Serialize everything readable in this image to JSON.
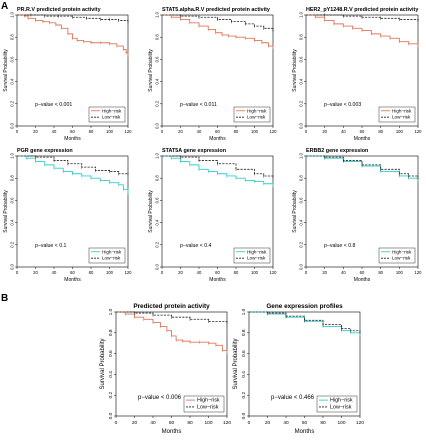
{
  "panel_labels": {
    "a": "A",
    "b": "B"
  },
  "chart_data": [
    {
      "type": "line",
      "panel": "A",
      "title": "PR.R.V   predicted protein activity",
      "xlabel": "Months",
      "ylabel": "Survival Probability",
      "xlim": [
        0,
        120
      ],
      "ylim": [
        0,
        1
      ],
      "x_ticks": [
        "0",
        "20",
        "40",
        "60",
        "80",
        "100",
        "120"
      ],
      "y_ticks": [
        "0.0",
        "0.2",
        "0.4",
        "0.6",
        "0.8",
        "1.0"
      ],
      "p_value": "p−value < 0.001",
      "legend_position": "bottom-right",
      "colors": {
        "high": "#e0755a",
        "low": "#222222"
      },
      "series": [
        {
          "name": "High−risk",
          "x": [
            0,
            8,
            12,
            20,
            28,
            35,
            42,
            48,
            55,
            60,
            65,
            72,
            80,
            90,
            100,
            108,
            115,
            118,
            120
          ],
          "y": [
            1.0,
            0.99,
            0.97,
            0.95,
            0.94,
            0.93,
            0.91,
            0.88,
            0.83,
            0.79,
            0.77,
            0.76,
            0.75,
            0.75,
            0.74,
            0.72,
            0.69,
            0.66,
            0.63
          ]
        },
        {
          "name": "Low−risk",
          "x": [
            0,
            15,
            30,
            45,
            60,
            75,
            90,
            100,
            110,
            120
          ],
          "y": [
            1.0,
            1.0,
            0.99,
            0.99,
            0.98,
            0.97,
            0.96,
            0.96,
            0.95,
            0.94
          ]
        }
      ]
    },
    {
      "type": "line",
      "panel": "A",
      "title": "STAT5.alpha.R.V   predicted protein activity",
      "xlabel": "Months",
      "ylabel": "Survival Probability",
      "xlim": [
        0,
        120
      ],
      "ylim": [
        0,
        1
      ],
      "x_ticks": [
        "0",
        "20",
        "40",
        "60",
        "80",
        "100",
        "120"
      ],
      "y_ticks": [
        "0.0",
        "0.2",
        "0.4",
        "0.6",
        "0.8",
        "1.0"
      ],
      "p_value": "p−value < 0.011",
      "legend_position": "bottom-right",
      "colors": {
        "high": "#e0755a",
        "low": "#222222"
      },
      "series": [
        {
          "name": "High−risk",
          "x": [
            0,
            10,
            20,
            30,
            40,
            50,
            58,
            65,
            72,
            80,
            90,
            100,
            108,
            115,
            120
          ],
          "y": [
            1.0,
            0.98,
            0.96,
            0.93,
            0.9,
            0.87,
            0.84,
            0.82,
            0.81,
            0.8,
            0.79,
            0.77,
            0.75,
            0.72,
            0.7
          ]
        },
        {
          "name": "Low−risk",
          "x": [
            0,
            20,
            40,
            60,
            75,
            90,
            100,
            110,
            120
          ],
          "y": [
            1.0,
            0.99,
            0.98,
            0.96,
            0.94,
            0.92,
            0.9,
            0.88,
            0.86
          ]
        }
      ]
    },
    {
      "type": "line",
      "panel": "A",
      "title": "HER2_pY1248.R.V   predicted protein activity",
      "xlabel": "Months",
      "ylabel": "Survival Probability",
      "xlim": [
        0,
        120
      ],
      "ylim": [
        0,
        1
      ],
      "x_ticks": [
        "0",
        "20",
        "40",
        "60",
        "80",
        "100",
        "120"
      ],
      "y_ticks": [
        "0.0",
        "0.2",
        "0.4",
        "0.6",
        "0.8",
        "1.0"
      ],
      "p_value": "p−value < 0.003",
      "legend_position": "bottom-right",
      "colors": {
        "high": "#e0755a",
        "low": "#222222"
      },
      "series": [
        {
          "name": "High−risk",
          "x": [
            0,
            10,
            20,
            30,
            40,
            50,
            60,
            70,
            80,
            90,
            100,
            110,
            120
          ],
          "y": [
            1.0,
            0.98,
            0.95,
            0.92,
            0.9,
            0.88,
            0.86,
            0.83,
            0.81,
            0.79,
            0.76,
            0.74,
            0.72
          ]
        },
        {
          "name": "Low−risk",
          "x": [
            0,
            20,
            40,
            60,
            80,
            100,
            120
          ],
          "y": [
            1.0,
            1.0,
            0.99,
            0.98,
            0.97,
            0.96,
            0.95
          ]
        }
      ]
    },
    {
      "type": "line",
      "panel": "A",
      "title": "PGR   gene expression",
      "xlabel": "Months",
      "ylabel": "Survival Probability",
      "xlim": [
        0,
        120
      ],
      "ylim": [
        0,
        1
      ],
      "x_ticks": [
        "0",
        "20",
        "40",
        "60",
        "80",
        "100",
        "120"
      ],
      "y_ticks": [
        "0.0",
        "0.2",
        "0.4",
        "0.6",
        "0.8",
        "1.0"
      ],
      "p_value": "p−value < 0.1",
      "legend_position": "bottom-right",
      "colors": {
        "high": "#33cccc",
        "low": "#222222"
      },
      "series": [
        {
          "name": "High−risk",
          "x": [
            0,
            10,
            20,
            30,
            40,
            50,
            60,
            70,
            80,
            90,
            100,
            110,
            115,
            120
          ],
          "y": [
            1.0,
            0.98,
            0.95,
            0.92,
            0.89,
            0.86,
            0.84,
            0.82,
            0.8,
            0.78,
            0.76,
            0.74,
            0.7,
            0.66
          ]
        },
        {
          "name": "Low−risk",
          "x": [
            0,
            20,
            40,
            55,
            70,
            85,
            100,
            110,
            120
          ],
          "y": [
            1.0,
            0.99,
            0.96,
            0.93,
            0.9,
            0.87,
            0.86,
            0.84,
            0.84
          ]
        }
      ]
    },
    {
      "type": "line",
      "panel": "A",
      "title": "STAT5A   gene expression",
      "xlabel": "Months",
      "ylabel": "Survival Probability",
      "xlim": [
        0,
        120
      ],
      "ylim": [
        0,
        1
      ],
      "x_ticks": [
        "0",
        "20",
        "40",
        "60",
        "80",
        "100",
        "120"
      ],
      "y_ticks": [
        "0.0",
        "0.2",
        "0.4",
        "0.6",
        "0.8",
        "1.0"
      ],
      "p_value": "p−value < 0.4",
      "legend_position": "bottom-right",
      "colors": {
        "high": "#33cccc",
        "low": "#222222"
      },
      "series": [
        {
          "name": "High−risk",
          "x": [
            0,
            10,
            20,
            30,
            40,
            50,
            60,
            70,
            80,
            90,
            100,
            110,
            120
          ],
          "y": [
            1.0,
            0.98,
            0.95,
            0.92,
            0.88,
            0.86,
            0.84,
            0.82,
            0.8,
            0.78,
            0.77,
            0.75,
            0.73
          ]
        },
        {
          "name": "Low−risk",
          "x": [
            0,
            20,
            40,
            60,
            80,
            100,
            110,
            120
          ],
          "y": [
            1.0,
            0.99,
            0.96,
            0.93,
            0.88,
            0.84,
            0.82,
            0.81
          ]
        }
      ]
    },
    {
      "type": "line",
      "panel": "A",
      "title": "ERBB2   gene expression",
      "xlabel": "Months",
      "ylabel": "Survival Probability",
      "xlim": [
        0,
        120
      ],
      "ylim": [
        0,
        1
      ],
      "x_ticks": [
        "0",
        "20",
        "40",
        "60",
        "80",
        "100",
        "120"
      ],
      "y_ticks": [
        "0.0",
        "0.2",
        "0.4",
        "0.6",
        "0.8",
        "1.0"
      ],
      "p_value": "p−value < 0.8",
      "legend_position": "bottom-right",
      "colors": {
        "high": "#33cccc",
        "low": "#222222"
      },
      "series": [
        {
          "name": "High−risk",
          "x": [
            0,
            20,
            40,
            60,
            80,
            100,
            110,
            120
          ],
          "y": [
            1.0,
            0.98,
            0.95,
            0.91,
            0.86,
            0.82,
            0.8,
            0.78
          ]
        },
        {
          "name": "Low−risk",
          "x": [
            0,
            20,
            40,
            60,
            80,
            100,
            110,
            120
          ],
          "y": [
            1.0,
            0.99,
            0.96,
            0.92,
            0.88,
            0.84,
            0.82,
            0.8
          ]
        }
      ]
    },
    {
      "type": "line",
      "panel": "B",
      "title": "Predicted protein activity",
      "xlabel": "Months",
      "ylabel": "Survival Probability",
      "xlim": [
        0,
        120
      ],
      "ylim": [
        0,
        1
      ],
      "x_ticks": [
        "0",
        "20",
        "40",
        "60",
        "80",
        "100",
        "120"
      ],
      "y_ticks": [
        "0.0",
        "0.2",
        "0.4",
        "0.6",
        "0.8",
        "1.0"
      ],
      "p_value": "p−value < 0.006",
      "legend_position": "bottom-right",
      "colors": {
        "high": "#e0755a",
        "low": "#222222"
      },
      "series": [
        {
          "name": "High−risk",
          "x": [
            0,
            10,
            20,
            30,
            40,
            48,
            55,
            60,
            65,
            72,
            80,
            90,
            100,
            108,
            115,
            120
          ],
          "y": [
            1.0,
            0.98,
            0.95,
            0.93,
            0.9,
            0.86,
            0.82,
            0.77,
            0.73,
            0.72,
            0.71,
            0.71,
            0.7,
            0.68,
            0.63,
            0.6
          ]
        },
        {
          "name": "Low−risk",
          "x": [
            0,
            20,
            40,
            60,
            80,
            100,
            120
          ],
          "y": [
            1.0,
            0.99,
            0.97,
            0.95,
            0.93,
            0.91,
            0.9
          ]
        }
      ]
    },
    {
      "type": "line",
      "panel": "B",
      "title": "Gene expression profiles",
      "xlabel": "Months",
      "ylabel": "Survival Probability",
      "xlim": [
        0,
        120
      ],
      "ylim": [
        0,
        1
      ],
      "x_ticks": [
        "0",
        "20",
        "40",
        "60",
        "80",
        "100",
        "120"
      ],
      "y_ticks": [
        "0.0",
        "0.2",
        "0.4",
        "0.6",
        "0.8",
        "1.0"
      ],
      "p_value": "p−value < 0.466",
      "legend_position": "bottom-right",
      "colors": {
        "high": "#33cccc",
        "low": "#222222"
      },
      "series": [
        {
          "name": "High−risk",
          "x": [
            0,
            20,
            40,
            60,
            80,
            100,
            110,
            120
          ],
          "y": [
            1.0,
            0.98,
            0.95,
            0.91,
            0.86,
            0.82,
            0.8,
            0.78
          ]
        },
        {
          "name": "Low−risk",
          "x": [
            0,
            20,
            40,
            60,
            80,
            100,
            110,
            120
          ],
          "y": [
            1.0,
            0.99,
            0.96,
            0.92,
            0.88,
            0.84,
            0.82,
            0.8
          ]
        }
      ]
    }
  ]
}
